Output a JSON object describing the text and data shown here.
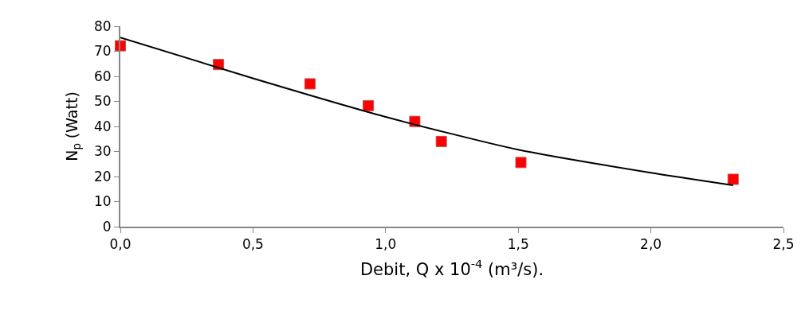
{
  "chart_data": {
    "type": "scatter",
    "xlabel": "Debit, Q x 10$^{-4}$ (m³/s).",
    "ylabel": "N$_{p}$ (Watt)",
    "series": [
      {
        "color": "#ff0000",
        "marker": "square",
        "x": [
          0,
          0.37,
          0.715,
          0.935,
          1.11,
          1.21,
          1.51,
          2.31
        ],
        "values": [
          72.2,
          64.7,
          57,
          48.3,
          42,
          34,
          25.6,
          18.9
        ]
      },
      {
        "type": "line",
        "color": "#000000",
        "marker": "none",
        "line_style": "solid",
        "x": [
          0,
          0.5,
          1.0,
          1.5,
          2.0,
          2.31
        ],
        "values": [
          75.5,
          59.2,
          43.8,
          30.7,
          21.5,
          16.5
        ]
      }
    ],
    "xlim": [
      0,
      2.5
    ],
    "ylim": [
      0,
      80
    ],
    "xticks": [
      {
        "value": 0,
        "label": "0,0"
      },
      {
        "value": 0.5,
        "label": "0,5"
      },
      {
        "value": 1.0,
        "label": "1,0"
      },
      {
        "value": 1.5,
        "label": "1,5"
      },
      {
        "value": 2.0,
        "label": "2,0"
      },
      {
        "value": 2.5,
        "label": "2,5"
      }
    ],
    "yticks": [
      0,
      10,
      20,
      30,
      40,
      50,
      60,
      70,
      80
    ]
  }
}
